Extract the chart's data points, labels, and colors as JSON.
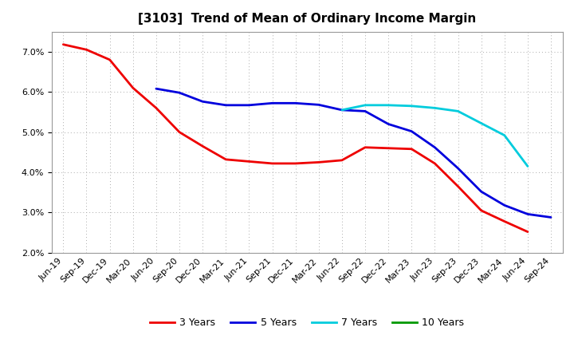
{
  "title": "[3103]  Trend of Mean of Ordinary Income Margin",
  "x_labels": [
    "Jun-19",
    "Sep-19",
    "Dec-19",
    "Mar-20",
    "Jun-20",
    "Sep-20",
    "Dec-20",
    "Mar-21",
    "Jun-21",
    "Sep-21",
    "Dec-21",
    "Mar-22",
    "Jun-22",
    "Sep-22",
    "Dec-22",
    "Mar-23",
    "Jun-23",
    "Sep-23",
    "Dec-23",
    "Mar-24",
    "Jun-24",
    "Sep-24"
  ],
  "y3": [
    7.18,
    7.05,
    6.8,
    6.1,
    5.6,
    5.0,
    4.65,
    4.32,
    4.27,
    4.22,
    4.22,
    4.25,
    4.3,
    4.62,
    4.6,
    4.58,
    4.22,
    3.65,
    3.05,
    2.78,
    2.52,
    null
  ],
  "y5": [
    null,
    null,
    null,
    null,
    6.08,
    5.98,
    5.76,
    5.67,
    5.67,
    5.72,
    5.72,
    5.68,
    5.55,
    5.52,
    5.2,
    5.02,
    4.62,
    4.1,
    3.52,
    3.18,
    2.96,
    2.88
  ],
  "y7": [
    null,
    null,
    null,
    null,
    null,
    null,
    null,
    null,
    null,
    null,
    null,
    null,
    5.55,
    5.67,
    5.67,
    5.65,
    5.6,
    5.52,
    5.22,
    4.92,
    4.15,
    null
  ],
  "y10": [
    null,
    null,
    null,
    null,
    null,
    null,
    null,
    null,
    null,
    null,
    null,
    null,
    null,
    null,
    null,
    null,
    null,
    null,
    null,
    null,
    null,
    null
  ],
  "color3": "#EE0000",
  "color5": "#0000DD",
  "color7": "#00CCDD",
  "color10": "#009900",
  "ylim": [
    2.0,
    7.5
  ],
  "yticks": [
    2.0,
    3.0,
    4.0,
    5.0,
    6.0,
    7.0
  ],
  "legend_labels": [
    "3 Years",
    "5 Years",
    "7 Years",
    "10 Years"
  ],
  "background_color": "#ffffff",
  "plot_bg_color": "#ffffff",
  "title_fontsize": 11,
  "tick_fontsize": 8,
  "lw": 2.0
}
